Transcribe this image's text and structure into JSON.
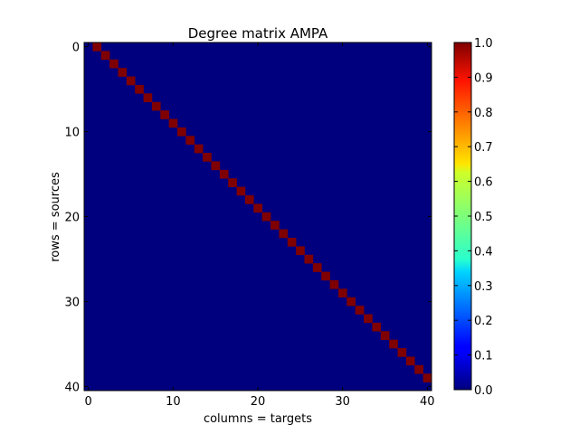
{
  "chart_data": {
    "type": "heatmap",
    "title": "Degree matrix AMPA",
    "xlabel": "columns = targets",
    "ylabel": "rows = sources",
    "rows": 41,
    "cols": 41,
    "cell_rule": "value 1.0 where column = row + 1, else 0.0",
    "x_ticks": [
      0,
      10,
      20,
      30,
      40
    ],
    "y_ticks": [
      0,
      10,
      20,
      30,
      40
    ],
    "colormap": "jet",
    "colorbar": {
      "min": 0.0,
      "max": 1.0,
      "ticks": [
        "0.0",
        "0.1",
        "0.2",
        "0.3",
        "0.4",
        "0.5",
        "0.6",
        "0.7",
        "0.8",
        "0.9",
        "1.0"
      ]
    },
    "colors": {
      "low": "#00007f",
      "high": "#7f0000"
    }
  }
}
